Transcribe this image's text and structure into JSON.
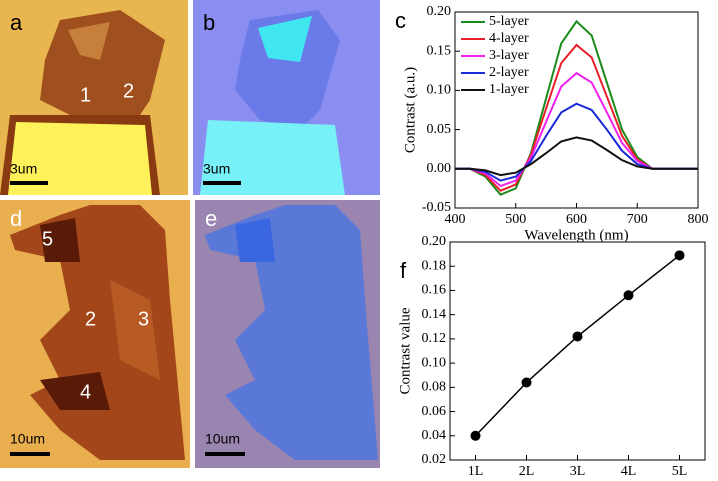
{
  "images": [
    {
      "letter": "a",
      "labels": [
        "1",
        "2"
      ],
      "scale": "3um"
    },
    {
      "letter": "b",
      "scale": "3um"
    },
    {
      "letter": "d",
      "labels": [
        "5",
        "2",
        "3",
        "4"
      ],
      "scale": "10um"
    },
    {
      "letter": "e",
      "scale": "10um"
    }
  ],
  "chart_data": [
    {
      "type": "line",
      "letter": "c",
      "xlabel": "Wavelength (nm)",
      "ylabel": "Contrast (a.u.)",
      "x": [
        400,
        425,
        450,
        475,
        500,
        525,
        550,
        575,
        600,
        625,
        650,
        675,
        700,
        725,
        750,
        775,
        800
      ],
      "series": [
        {
          "name": "5-layer",
          "color": "#1a8a1a",
          "values": [
            0,
            0,
            -0.01,
            -0.033,
            -0.025,
            0.02,
            0.09,
            0.16,
            0.188,
            0.17,
            0.11,
            0.05,
            0.015,
            0,
            0,
            0,
            0
          ]
        },
        {
          "name": "4-layer",
          "color": "#e8202a",
          "values": [
            0,
            0,
            -0.008,
            -0.028,
            -0.02,
            0.018,
            0.077,
            0.135,
            0.158,
            0.142,
            0.092,
            0.042,
            0.012,
            0,
            0,
            0,
            0
          ]
        },
        {
          "name": "3-layer",
          "color": "#f020f0",
          "values": [
            0,
            0,
            -0.006,
            -0.022,
            -0.015,
            0.014,
            0.06,
            0.105,
            0.122,
            0.11,
            0.072,
            0.033,
            0.01,
            0,
            0,
            0,
            0
          ]
        },
        {
          "name": "2-layer",
          "color": "#1a2ad8",
          "values": [
            0,
            0,
            -0.004,
            -0.015,
            -0.01,
            0.01,
            0.042,
            0.072,
            0.083,
            0.075,
            0.05,
            0.023,
            0.006,
            0,
            0,
            0,
            0
          ]
        },
        {
          "name": "1-layer",
          "color": "#111111",
          "values": [
            0,
            0,
            -0.002,
            -0.008,
            -0.005,
            0.006,
            0.02,
            0.035,
            0.04,
            0.036,
            0.024,
            0.011,
            0.003,
            0,
            0,
            0,
            0
          ]
        }
      ],
      "xlim": [
        400,
        800
      ],
      "xticks": [
        400,
        500,
        600,
        700,
        800
      ],
      "ylim": [
        -0.05,
        0.2
      ],
      "yticks": [
        -0.05,
        {
          "value": 0,
          "label": "0.00"
        },
        0.05,
        {
          "value": 0.1,
          "label": "0.10"
        },
        0.15,
        {
          "value": 0.2,
          "label": "0.20"
        }
      ],
      "legend": "upper left"
    },
    {
      "type": "line",
      "letter": "f",
      "ylabel": "Contrast value",
      "color": "#000000",
      "marker": "circle",
      "categories": [
        "1L",
        "2L",
        "3L",
        "4L",
        "5L"
      ],
      "values": [
        0.04,
        0.084,
        0.122,
        0.156,
        0.189
      ],
      "ylim": [
        0.02,
        0.2
      ],
      "yticks": [
        0.02,
        0.04,
        0.06,
        0.08,
        {
          "value": 0.1,
          "label": "0.10"
        },
        0.12,
        0.14,
        0.16,
        0.18,
        {
          "value": 0.2,
          "label": "0.20"
        }
      ]
    }
  ]
}
